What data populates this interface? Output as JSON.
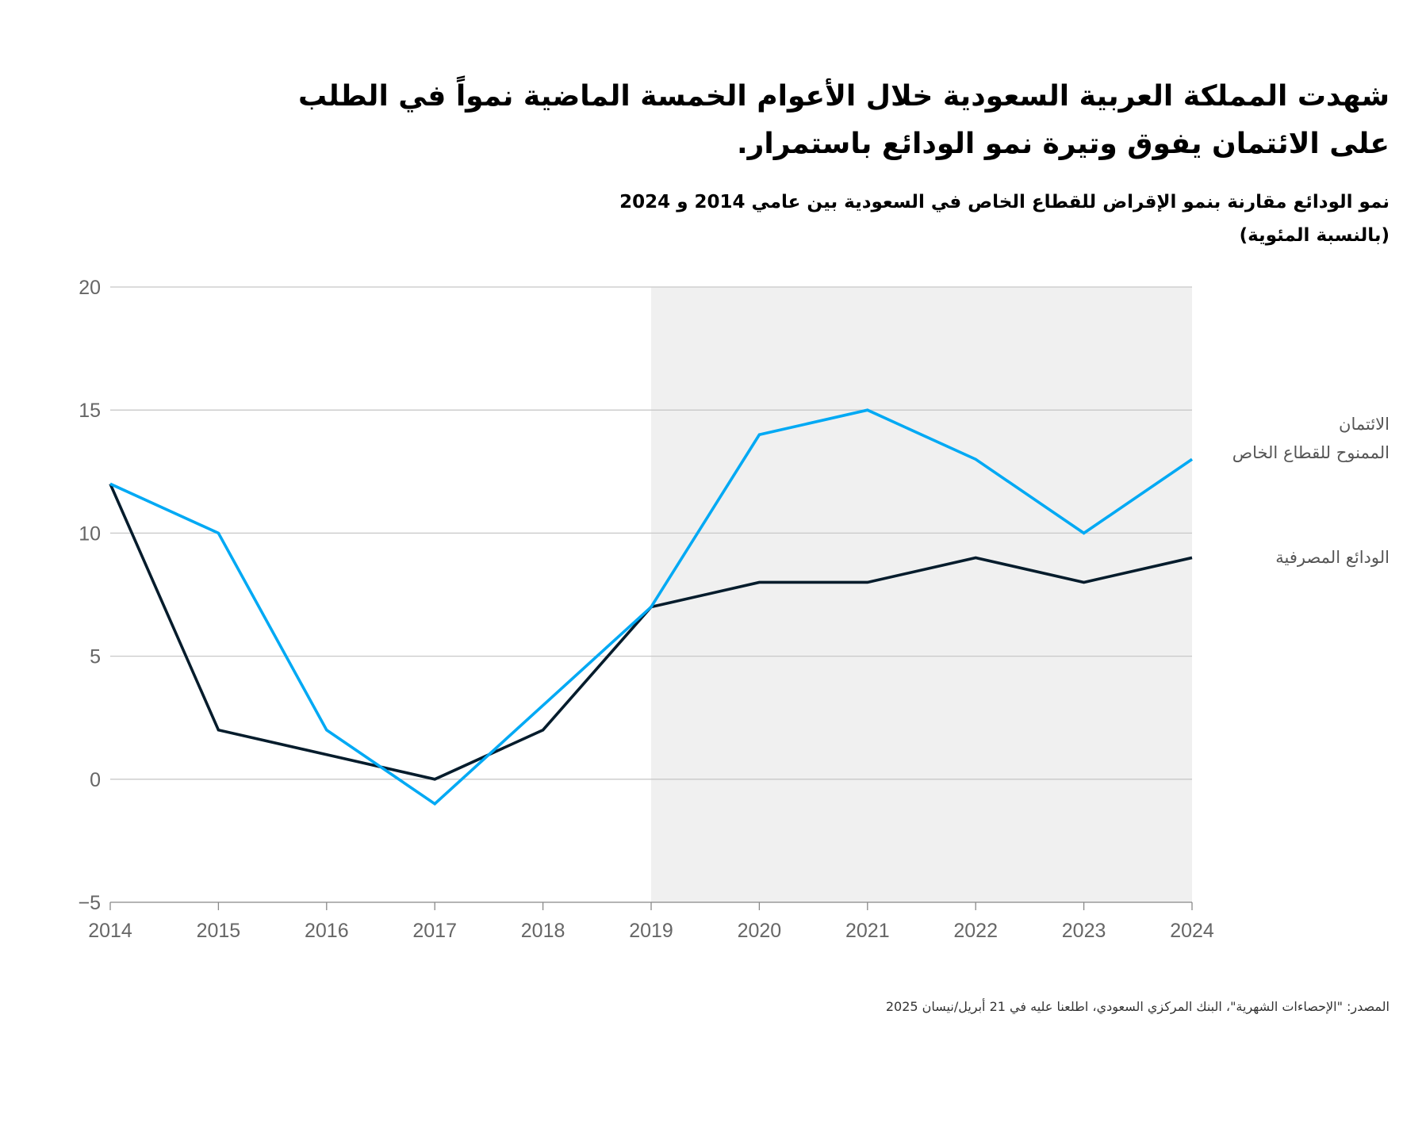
{
  "title": "شهدت المملكة العربية السعودية خلال الأعوام الخمسة الماضية نمواً في الطلب على الائتمان يفوق وتيرة نمو الودائع باستمرار.",
  "subtitle": "نمو الودائع مقارنة بنمو الإقراض للقطاع الخاص في السعودية بين عامي 2014 و 2024 (بالنسبة المئوية)",
  "source": "المصدر: \"الإحصاءات الشهرية\"، البنك المركزي السعودي، اطلعنا عليه في 21 أبريل/نيسان 2025",
  "chart_data": {
    "type": "line",
    "x": [
      2014,
      2015,
      2016,
      2017,
      2018,
      2019,
      2020,
      2021,
      2022,
      2023,
      2024
    ],
    "ylim": [
      -5,
      20
    ],
    "yticks": [
      -5,
      0,
      5,
      10,
      15,
      20
    ],
    "ytick_labels": [
      "−5",
      "0",
      "5",
      "10",
      "15",
      "20"
    ],
    "grid": true,
    "shaded_range": [
      2019,
      2024
    ],
    "series": [
      {
        "name": "الائتمان المنوح للقطاع الخاص",
        "name_line1": "الائتمان",
        "name_line2": "الممنوح للقطاع الخاص",
        "color": "#00a9f4",
        "values": [
          12,
          10,
          2,
          -1,
          3,
          7,
          14,
          15,
          13,
          10,
          13
        ]
      },
      {
        "name": "الودائع المصرفية",
        "color": "#051c2c",
        "values": [
          12,
          2,
          1,
          0,
          2,
          7,
          8,
          8,
          9,
          8,
          9
        ]
      }
    ]
  }
}
